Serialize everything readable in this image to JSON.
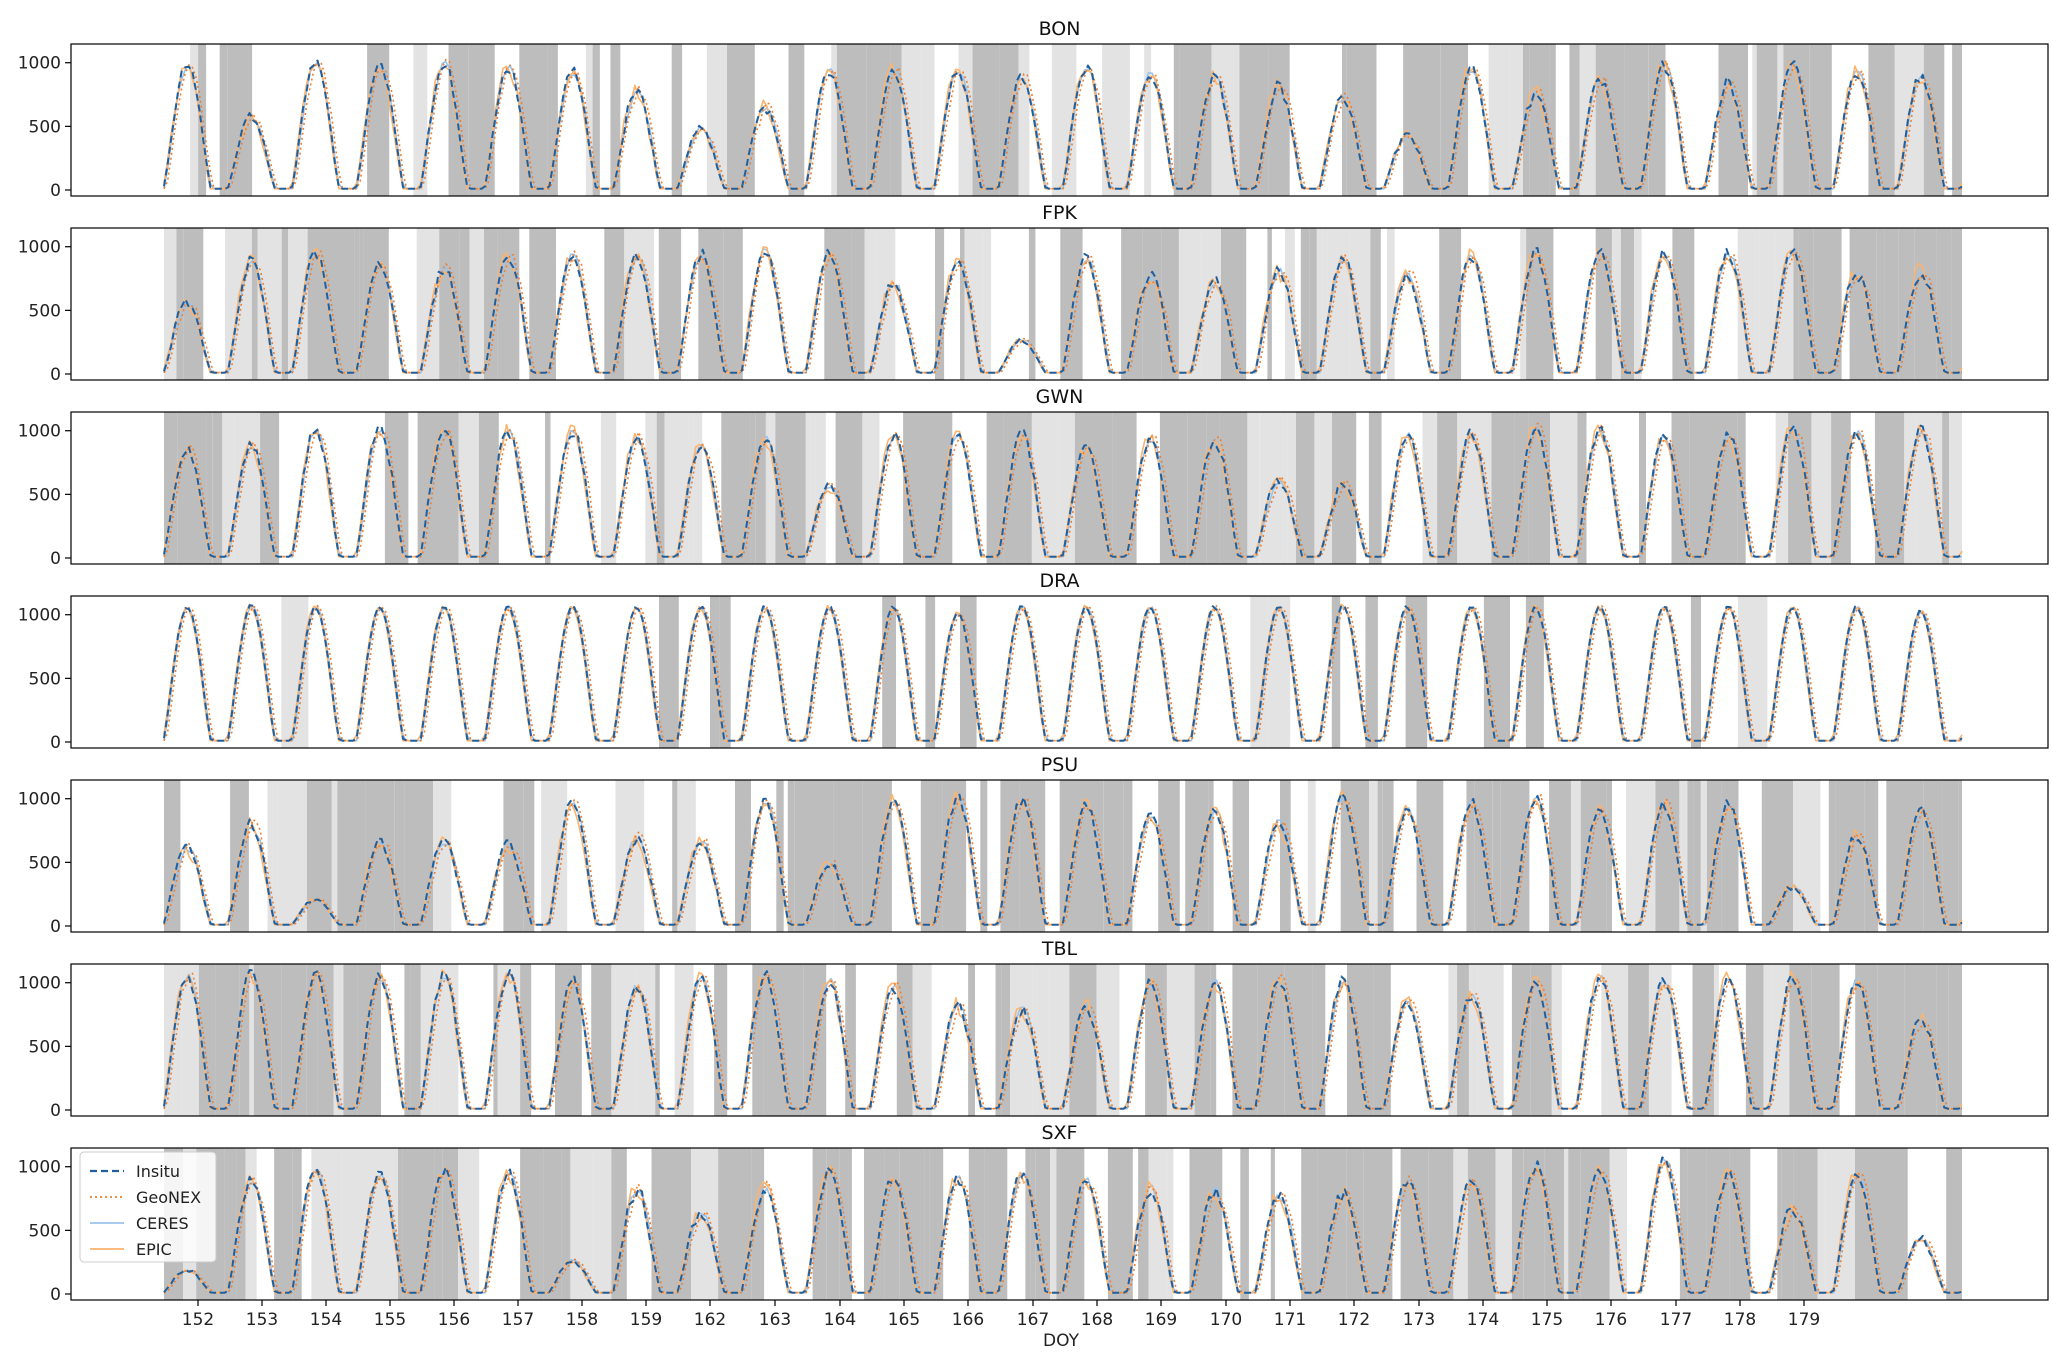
{
  "figure": {
    "xlabel": "DOY"
  },
  "legend": {
    "placement": "bottom-left of last panel",
    "entries": [
      {
        "label": "Insitu",
        "color": "#1f5f9e",
        "dash": "dashed"
      },
      {
        "label": "GeoNEX",
        "color": "#f07f2e",
        "dash": "dotted"
      },
      {
        "label": "CERES",
        "color": "#9cc3ea",
        "dash": "solid"
      },
      {
        "label": "EPIC",
        "color": "#fdb36b",
        "dash": "solid"
      }
    ]
  },
  "chart_data": {
    "type": "line",
    "xlabel": "DOY",
    "ylabel": "",
    "xlim": [
      151.5,
      179.5
    ],
    "ylim": [
      0,
      1100
    ],
    "yticks": [
      0,
      500,
      1000
    ],
    "xticks": [
      152,
      153,
      154,
      155,
      156,
      157,
      158,
      159,
      162,
      163,
      164,
      165,
      166,
      167,
      168,
      169,
      170,
      171,
      172,
      173,
      174,
      175,
      176,
      177,
      178,
      179
    ],
    "grid": false,
    "shading_colors": {
      "overcast": "#bdbdbd",
      "partly": "#e3e3e3"
    },
    "series_names": [
      "Insitu",
      "GeoNEX",
      "CERES",
      "EPIC"
    ],
    "panels": [
      {
        "title": "BON",
        "peaks": [
          960,
          560,
          1000,
          960,
          980,
          960,
          920,
          760,
          470,
          640,
          930,
          940,
          930,
          880,
          960,
          900,
          880,
          800,
          720,
          420,
          950,
          760,
          860,
          970,
          820,
          970,
          920,
          880
        ]
      },
      {
        "title": "FPK",
        "peaks": [
          550,
          880,
          940,
          850,
          800,
          920,
          920,
          920,
          930,
          960,
          930,
          700,
          880,
          260,
          900,
          760,
          720,
          800,
          900,
          780,
          920,
          950,
          940,
          940,
          940,
          950,
          780,
          800
        ]
      },
      {
        "title": "GWN",
        "peaks": [
          850,
          870,
          1000,
          1000,
          990,
          990,
          990,
          940,
          880,
          930,
          560,
          950,
          960,
          960,
          850,
          930,
          920,
          600,
          560,
          950,
          960,
          1020,
          1000,
          940,
          950,
          1020,
          980,
          1000
        ]
      },
      {
        "title": "DRA",
        "peaks": [
          1050,
          1060,
          1050,
          1050,
          1050,
          1050,
          1050,
          1050,
          1050,
          1050,
          1050,
          1050,
          1000,
          1050,
          1050,
          1050,
          1050,
          1050,
          1060,
          1050,
          1050,
          1050,
          1050,
          1050,
          1050,
          1050,
          1050,
          1020
        ]
      },
      {
        "title": "PSU",
        "peaks": [
          600,
          780,
          200,
          650,
          650,
          620,
          960,
          680,
          650,
          970,
          480,
          970,
          1000,
          980,
          950,
          850,
          900,
          800,
          1000,
          900,
          960,
          1000,
          900,
          950,
          960,
          300,
          700,
          900
        ]
      },
      {
        "title": "TBL",
        "peaks": [
          1050,
          1060,
          1040,
          1040,
          1040,
          1060,
          1000,
          960,
          1020,
          1040,
          1000,
          960,
          800,
          780,
          800,
          980,
          1000,
          1020,
          1000,
          850,
          900,
          1000,
          1020,
          1010,
          1020,
          1020,
          1000,
          700
        ]
      },
      {
        "title": "SXF",
        "peaks": [
          180,
          880,
          980,
          930,
          960,
          940,
          250,
          800,
          620,
          820,
          960,
          900,
          900,
          930,
          880,
          820,
          800,
          760,
          780,
          880,
          870,
          1000,
          960,
          1050,
          930,
          650,
          930,
          420
        ]
      }
    ]
  }
}
